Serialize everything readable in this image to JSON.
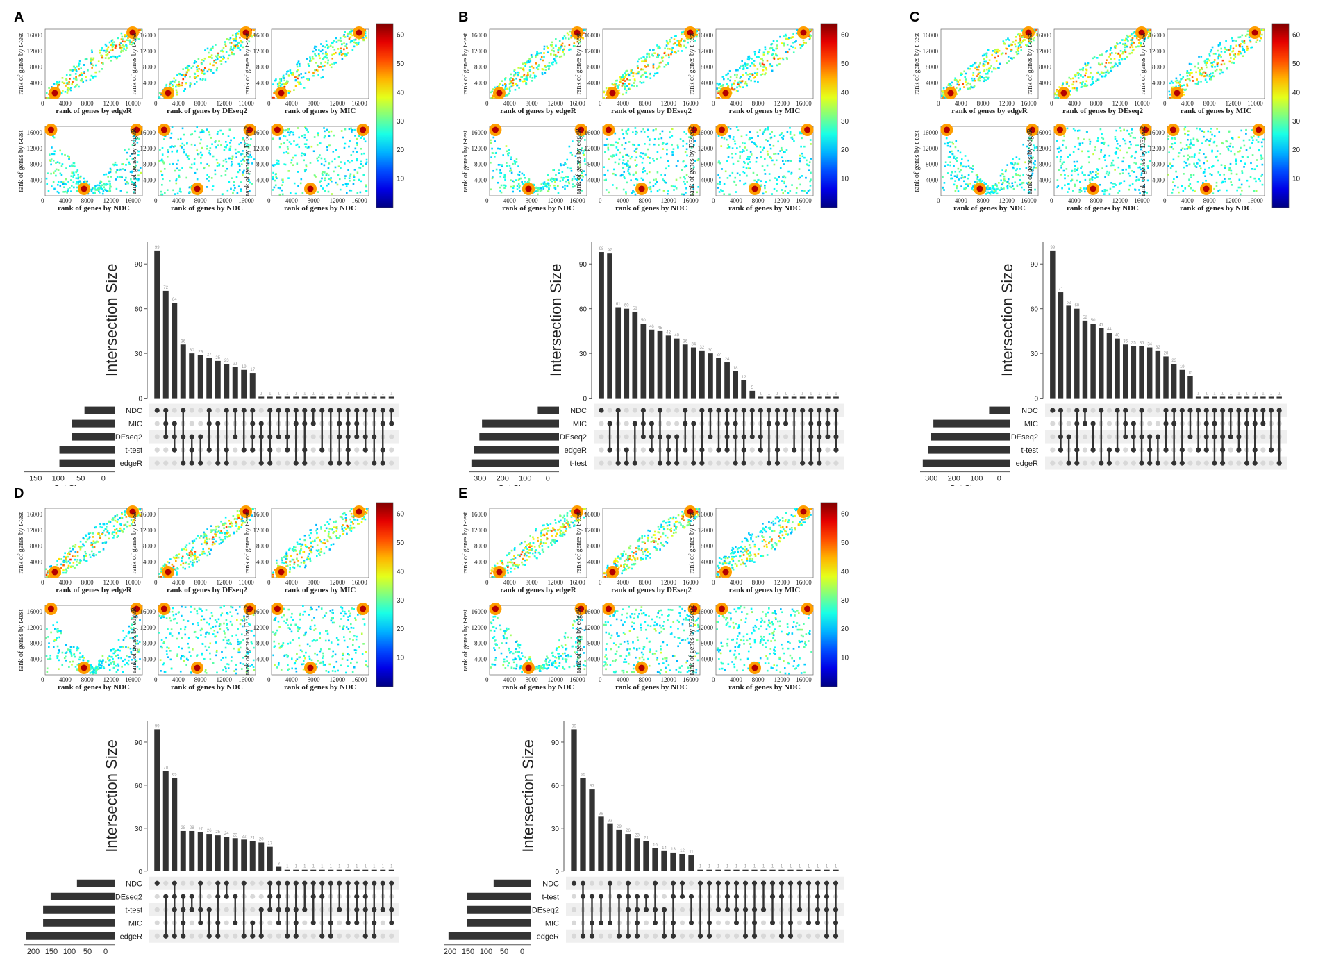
{
  "figure": {
    "common": {
      "scatter_ticks": [
        "4000",
        "8000",
        "12000",
        "16000"
      ],
      "zero": "0",
      "colorbar_ticks": [
        "10",
        "20",
        "30",
        "40",
        "50",
        "60"
      ],
      "intersection_ylabel": "Intersection Size",
      "intersection_ticks": [
        "0",
        "30",
        "60",
        "90"
      ],
      "set_size_label": "Set Size"
    },
    "panels": [
      {
        "label": "A",
        "scatter_rows": [
          [
            "rank of genes by edgeR",
            "rank of genes by DEseq2",
            "rank of genes by MIC"
          ],
          [
            "rank of genes by NDC",
            "rank of genes by NDC",
            "rank of genes by NDC"
          ]
        ],
        "scatter_ylabels": [
          [
            "rank of genes by t-test",
            "rank of genes by t-test",
            "rank of genes by t-test"
          ],
          [
            "rank of genes by t-test",
            "rank of genes by edgeR",
            "rank of genes by DEseq2"
          ]
        ],
        "sets": [
          "NDC",
          "MIC",
          "DEseq2",
          "t-test",
          "edgeR"
        ],
        "set_sizes": [
          60,
          85,
          85,
          110,
          110
        ],
        "set_size_ticks": [
          "150",
          "100",
          "50",
          "0"
        ],
        "set_axis_max": 180,
        "bars": [
          99,
          72,
          64,
          36,
          30,
          29,
          27,
          25,
          23,
          21,
          19,
          17,
          1,
          1,
          1,
          1,
          1,
          1,
          1,
          1,
          1,
          1,
          1,
          1,
          1,
          1,
          1,
          1
        ]
      },
      {
        "label": "B",
        "scatter_rows": [
          [
            "rank of genes by edgeR",
            "rank of genes by DEseq2",
            "rank of genes by MIC"
          ],
          [
            "rank of genes by NDC",
            "rank of genes by NDC",
            "rank of genes by NDC"
          ]
        ],
        "scatter_ylabels": [
          [
            "rank of genes by t-test",
            "rank of genes by t-test",
            "rank of genes by t-test"
          ],
          [
            "rank of genes by t-test",
            "rank of genes by edgeR",
            "rank of genes by DEseq2"
          ]
        ],
        "sets": [
          "NDC",
          "MIC",
          "DEseq2",
          "edgeR",
          "t-test"
        ],
        "set_sizes": [
          80,
          290,
          300,
          320,
          330
        ],
        "set_size_ticks": [
          "300",
          "200",
          "100",
          "0"
        ],
        "set_axis_max": 340,
        "bars": [
          98,
          97,
          61,
          60,
          58,
          50,
          46,
          45,
          42,
          40,
          36,
          34,
          32,
          30,
          27,
          24,
          18,
          12,
          5,
          1,
          1,
          1,
          1,
          1,
          1,
          1,
          1,
          1,
          1
        ]
      },
      {
        "label": "C",
        "scatter_rows": [
          [
            "rank of genes by edgeR",
            "rank of genes by DEseq2",
            "rank of genes by MIC"
          ],
          [
            "rank of genes by NDC",
            "rank of genes by NDC",
            "rank of genes by NDC"
          ]
        ],
        "scatter_ylabels": [
          [
            "rank of genes by t-test",
            "rank of genes by t-test",
            "rank of genes by t-test"
          ],
          [
            "rank of genes by t-test",
            "rank of genes by edgeR",
            "rank of genes by DEseq2"
          ]
        ],
        "sets": [
          "NDC",
          "MIC",
          "DEseq2",
          "t-test",
          "edgeR"
        ],
        "set_sizes": [
          80,
          290,
          300,
          310,
          330
        ],
        "set_size_ticks": [
          "300",
          "200",
          "100",
          "0"
        ],
        "set_axis_max": 340,
        "bars": [
          99,
          71,
          62,
          60,
          52,
          50,
          47,
          44,
          40,
          36,
          35,
          35,
          34,
          32,
          28,
          23,
          19,
          15,
          1,
          1,
          1,
          1,
          1,
          1,
          1,
          1,
          1,
          1,
          1
        ]
      },
      {
        "label": "D",
        "scatter_rows": [
          [
            "rank of genes by edgeR",
            "rank of genes by DEseq2",
            "rank of genes by MIC"
          ],
          [
            "rank of genes by NDC",
            "rank of genes by NDC",
            "rank of genes by NDC"
          ]
        ],
        "scatter_ylabels": [
          [
            "rank of genes by t-test",
            "rank of genes by t-test",
            "rank of genes by t-test"
          ],
          [
            "rank of genes by t-test",
            "rank of genes by edgeR",
            "rank of genes by DEseq2"
          ]
        ],
        "sets": [
          "NDC",
          "DEseq2",
          "t-test",
          "MIC",
          "edgeR"
        ],
        "set_sizes": [
          100,
          170,
          190,
          190,
          235
        ],
        "set_size_ticks": [
          "200",
          "150",
          "100",
          "50",
          "0"
        ],
        "set_axis_max": 240,
        "bars": [
          99,
          70,
          65,
          28,
          28,
          27,
          26,
          25,
          24,
          23,
          22,
          21,
          20,
          17,
          3,
          1,
          1,
          1,
          1,
          1,
          1,
          1,
          1,
          1,
          1,
          1,
          1,
          1
        ]
      },
      {
        "label": "E",
        "scatter_rows": [
          [
            "rank of genes by edgeR",
            "rank of genes by DEseq2",
            "rank of genes by MIC"
          ],
          [
            "rank of genes by NDC",
            "rank of genes by NDC",
            "rank of genes by NDC"
          ]
        ],
        "scatter_ylabels": [
          [
            "rank of genes by t-test",
            "rank of genes by t-test",
            "rank of genes by t-test"
          ],
          [
            "rank of genes by t-test",
            "rank of genes by edgeR",
            "rank of genes by DEseq2"
          ]
        ],
        "sets": [
          "NDC",
          "t-test",
          "DEseq2",
          "MIC",
          "edgeR"
        ],
        "set_sizes": [
          100,
          170,
          170,
          170,
          220
        ],
        "set_size_ticks": [
          "200",
          "150",
          "100",
          "50",
          "0"
        ],
        "set_axis_max": 240,
        "bars": [
          99,
          65,
          57,
          38,
          33,
          29,
          26,
          23,
          21,
          16,
          14,
          13,
          12,
          11,
          1,
          1,
          1,
          1,
          1,
          1,
          1,
          1,
          1,
          1,
          1,
          1,
          1,
          1,
          1,
          1
        ]
      }
    ]
  },
  "chart_data": [
    {
      "type": "bar",
      "title": "A",
      "ylabel": "Intersection Size",
      "ylim": [
        0,
        105
      ],
      "series": [
        {
          "name": "Intersection Size",
          "values": [
            99,
            72,
            64,
            36,
            30,
            29,
            27,
            25,
            23,
            21,
            19,
            17,
            1,
            1,
            1,
            1,
            1,
            1,
            1,
            1,
            1,
            1,
            1,
            1,
            1,
            1,
            1,
            1
          ]
        }
      ],
      "sets": [
        "NDC",
        "MIC",
        "DEseq2",
        "t-test",
        "edgeR"
      ],
      "set_sizes": [
        60,
        85,
        85,
        110,
        110
      ]
    },
    {
      "type": "bar",
      "title": "B",
      "ylabel": "Intersection Size",
      "ylim": [
        0,
        105
      ],
      "series": [
        {
          "name": "Intersection Size",
          "values": [
            98,
            97,
            61,
            60,
            58,
            50,
            46,
            45,
            42,
            40,
            36,
            34,
            32,
            30,
            27,
            24,
            18,
            12,
            5,
            1,
            1,
            1,
            1,
            1,
            1,
            1,
            1,
            1,
            1
          ]
        }
      ],
      "sets": [
        "NDC",
        "MIC",
        "DEseq2",
        "edgeR",
        "t-test"
      ],
      "set_sizes": [
        80,
        290,
        300,
        320,
        330
      ]
    },
    {
      "type": "bar",
      "title": "C",
      "ylabel": "Intersection Size",
      "ylim": [
        0,
        105
      ],
      "series": [
        {
          "name": "Intersection Size",
          "values": [
            99,
            71,
            62,
            60,
            52,
            50,
            47,
            44,
            40,
            36,
            35,
            35,
            34,
            32,
            28,
            23,
            19,
            15,
            1,
            1,
            1,
            1,
            1,
            1,
            1,
            1,
            1,
            1,
            1
          ]
        }
      ],
      "sets": [
        "NDC",
        "MIC",
        "DEseq2",
        "t-test",
        "edgeR"
      ],
      "set_sizes": [
        80,
        290,
        300,
        310,
        330
      ]
    },
    {
      "type": "bar",
      "title": "D",
      "ylabel": "Intersection Size",
      "ylim": [
        0,
        105
      ],
      "series": [
        {
          "name": "Intersection Size",
          "values": [
            99,
            70,
            65,
            28,
            28,
            27,
            26,
            25,
            24,
            23,
            22,
            21,
            20,
            17,
            3,
            1,
            1,
            1,
            1,
            1,
            1,
            1,
            1,
            1,
            1,
            1,
            1,
            1
          ]
        }
      ],
      "sets": [
        "NDC",
        "DEseq2",
        "t-test",
        "MIC",
        "edgeR"
      ],
      "set_sizes": [
        100,
        170,
        190,
        190,
        235
      ]
    },
    {
      "type": "bar",
      "title": "E",
      "ylabel": "Intersection Size",
      "ylim": [
        0,
        105
      ],
      "series": [
        {
          "name": "Intersection Size",
          "values": [
            99,
            65,
            57,
            38,
            33,
            29,
            26,
            23,
            21,
            16,
            14,
            13,
            12,
            11,
            1,
            1,
            1,
            1,
            1,
            1,
            1,
            1,
            1,
            1,
            1,
            1,
            1,
            1,
            1,
            1
          ]
        }
      ],
      "sets": [
        "NDC",
        "t-test",
        "DEseq2",
        "MIC",
        "edgeR"
      ],
      "set_sizes": [
        100,
        170,
        170,
        170,
        220
      ]
    }
  ]
}
